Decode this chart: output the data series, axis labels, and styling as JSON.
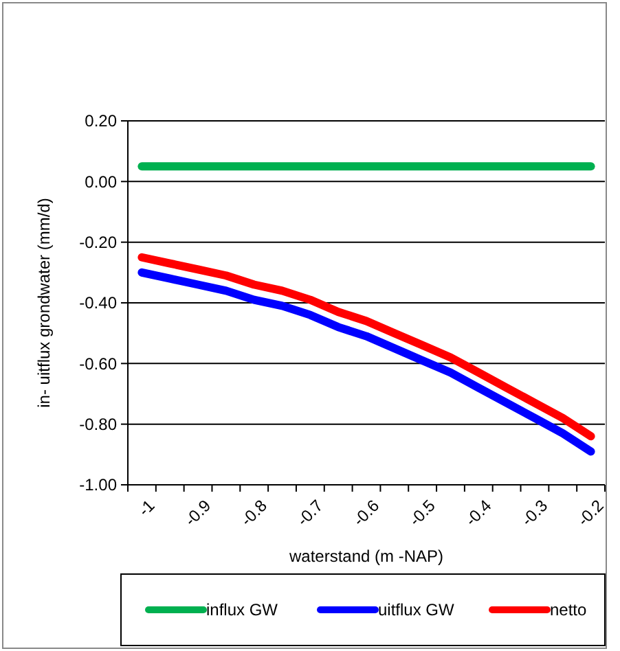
{
  "chart_data": {
    "type": "line",
    "xlabel": "waterstand (m -NAP)",
    "ylabel": "in- uitflux grondwater (mm/d)",
    "categories": [
      "-1",
      null,
      "-0.9",
      null,
      "-0.8",
      null,
      "-0.7",
      null,
      "-0.6",
      null,
      "-0.5",
      null,
      "-0.4",
      null,
      "-0.3",
      null,
      "-0.2"
    ],
    "series": [
      {
        "name": "influx GW",
        "color": "#00b050",
        "values": [
          0.05,
          0.05,
          0.05,
          0.05,
          0.05,
          0.05,
          0.05,
          0.05,
          0.05,
          0.05,
          0.05,
          0.05,
          0.05,
          0.05,
          0.05,
          0.05,
          0.05
        ]
      },
      {
        "name": "uitflux GW",
        "color": "#0000ff",
        "values": [
          -0.3,
          -0.32,
          -0.34,
          -0.36,
          -0.39,
          -0.41,
          -0.44,
          -0.48,
          -0.51,
          -0.55,
          -0.59,
          -0.63,
          -0.68,
          -0.73,
          -0.78,
          -0.83,
          -0.89
        ]
      },
      {
        "name": "netto",
        "color": "#ff0000",
        "values": [
          -0.25,
          -0.27,
          -0.29,
          -0.31,
          -0.34,
          -0.36,
          -0.39,
          -0.43,
          -0.46,
          -0.5,
          -0.54,
          -0.58,
          -0.63,
          -0.68,
          -0.73,
          -0.78,
          -0.84
        ]
      }
    ],
    "ylim": [
      -1,
      0.2
    ],
    "yticks": [
      {
        "value": -1,
        "label": "-1.00"
      },
      {
        "value": -0.8,
        "label": "-0.80"
      },
      {
        "value": -0.6,
        "label": "-0.60"
      },
      {
        "value": -0.4,
        "label": "-0.40"
      },
      {
        "value": -0.2,
        "label": "-0.20"
      },
      {
        "value": 0,
        "label": "0.00"
      },
      {
        "value": 0.2,
        "label": "0.20"
      }
    ],
    "grid": "y",
    "legend": "bottom",
    "marker": "none",
    "line_style": "solid"
  }
}
